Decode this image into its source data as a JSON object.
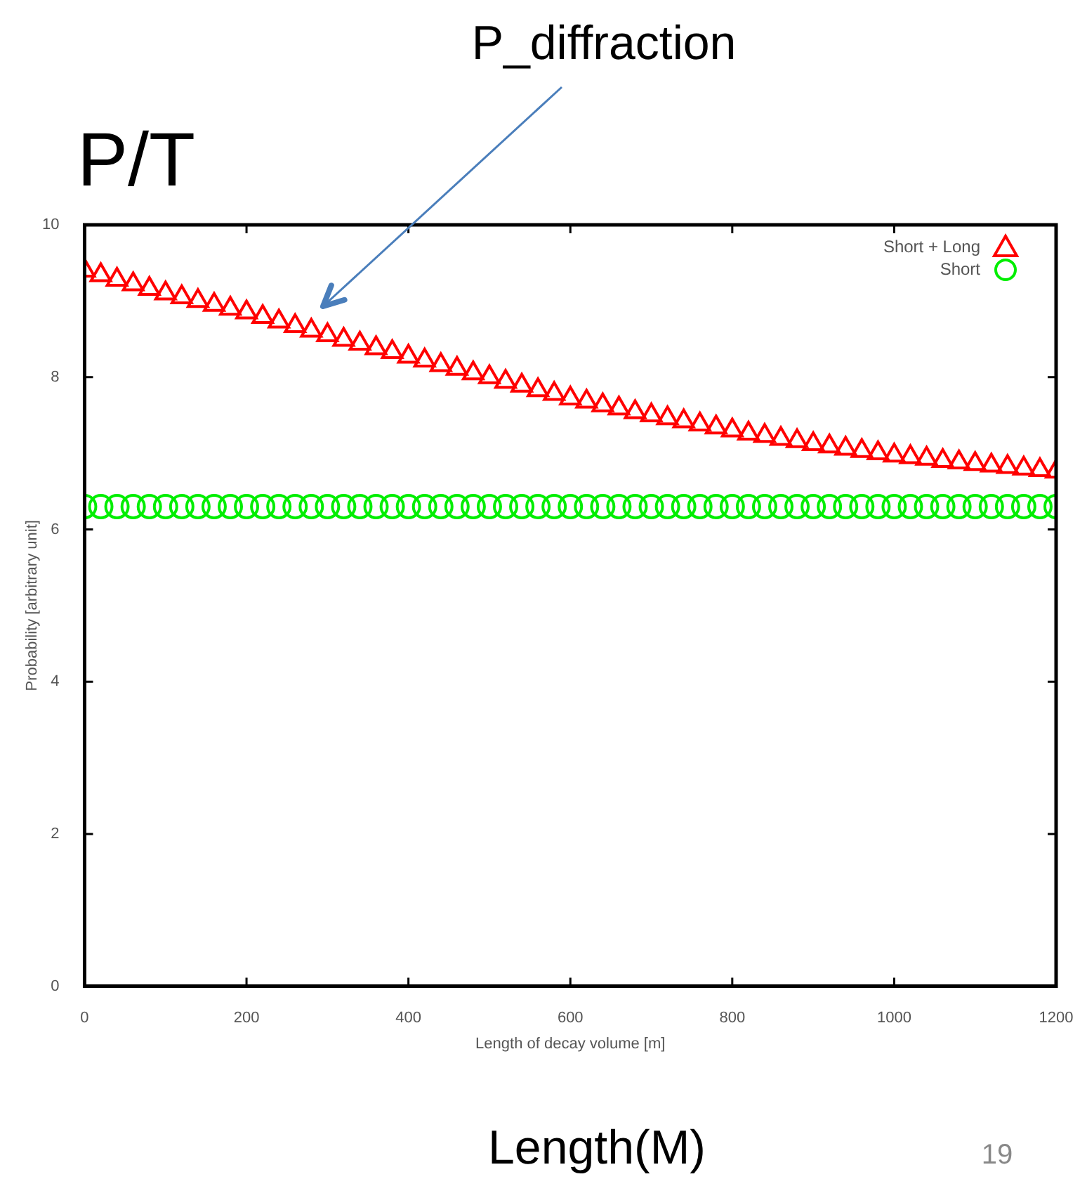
{
  "chart_data": {
    "type": "scatter",
    "title": "P/T",
    "xlabel": "Length of decay volume [m]",
    "ylabel": "Probability [arbitrary unit]",
    "x": [
      0,
      20,
      40,
      60,
      80,
      100,
      120,
      140,
      160,
      180,
      200,
      220,
      240,
      260,
      280,
      300,
      320,
      340,
      360,
      380,
      400,
      420,
      440,
      460,
      480,
      500,
      520,
      540,
      560,
      580,
      600,
      620,
      640,
      660,
      680,
      700,
      720,
      740,
      760,
      780,
      800,
      820,
      840,
      860,
      880,
      900,
      920,
      940,
      960,
      980,
      1000,
      1020,
      1040,
      1060,
      1080,
      1100,
      1120,
      1140,
      1160,
      1180,
      1200
    ],
    "series": [
      {
        "name": "Short + Long",
        "color": "#ff0000",
        "marker": "triangle",
        "values": [
          9.4,
          9.34,
          9.28,
          9.22,
          9.16,
          9.1,
          9.05,
          9.0,
          8.95,
          8.9,
          8.85,
          8.79,
          8.73,
          8.67,
          8.61,
          8.55,
          8.49,
          8.44,
          8.38,
          8.33,
          8.27,
          8.22,
          8.16,
          8.11,
          8.05,
          8.0,
          7.94,
          7.89,
          7.83,
          7.78,
          7.72,
          7.68,
          7.63,
          7.59,
          7.54,
          7.5,
          7.46,
          7.42,
          7.38,
          7.34,
          7.3,
          7.26,
          7.23,
          7.19,
          7.16,
          7.12,
          7.09,
          7.06,
          7.03,
          7.0,
          6.97,
          6.95,
          6.93,
          6.9,
          6.88,
          6.86,
          6.84,
          6.82,
          6.8,
          6.78,
          6.76
        ]
      },
      {
        "name": "Short",
        "color": "#00ee00",
        "marker": "circle",
        "values": [
          6.3,
          6.3,
          6.3,
          6.3,
          6.3,
          6.3,
          6.3,
          6.3,
          6.3,
          6.3,
          6.3,
          6.3,
          6.3,
          6.3,
          6.3,
          6.3,
          6.3,
          6.3,
          6.3,
          6.3,
          6.3,
          6.3,
          6.3,
          6.3,
          6.3,
          6.3,
          6.3,
          6.3,
          6.3,
          6.3,
          6.3,
          6.3,
          6.3,
          6.3,
          6.3,
          6.3,
          6.3,
          6.3,
          6.3,
          6.3,
          6.3,
          6.3,
          6.3,
          6.3,
          6.3,
          6.3,
          6.3,
          6.3,
          6.3,
          6.3,
          6.3,
          6.3,
          6.3,
          6.3,
          6.3,
          6.3,
          6.3,
          6.3,
          6.3,
          6.3,
          6.3
        ]
      }
    ],
    "xlim": [
      0,
      1200
    ],
    "xticks": [
      0,
      200,
      400,
      600,
      800,
      1000,
      1200
    ],
    "ylim": [
      0,
      10
    ],
    "yticks": [
      0,
      2,
      4,
      6,
      8,
      10
    ],
    "grid": false,
    "legend": "top right",
    "annotations": [
      "P_diffraction",
      "Length(M)",
      "19"
    ]
  }
}
